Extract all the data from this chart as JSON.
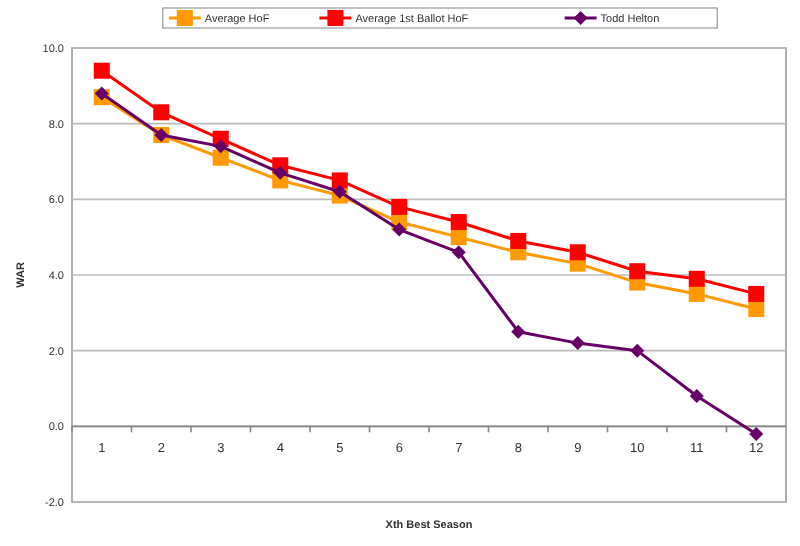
{
  "chart_data": {
    "type": "line",
    "xlabel": "Xth Best Season",
    "ylabel": "WAR",
    "categories": [
      "1",
      "2",
      "3",
      "4",
      "5",
      "6",
      "7",
      "8",
      "9",
      "10",
      "11",
      "12"
    ],
    "ylim": [
      -2,
      10
    ],
    "yticks": [
      {
        "value": -2,
        "label": "-2.0"
      },
      {
        "value": 0,
        "label": "0.0"
      },
      {
        "value": 2,
        "label": "2.0"
      },
      {
        "value": 4,
        "label": "4.0"
      },
      {
        "value": 6,
        "label": "6.0"
      },
      {
        "value": 8,
        "label": "8.0"
      },
      {
        "value": 10,
        "label": "10.0"
      }
    ],
    "grid": "y",
    "legend": "top",
    "series": [
      {
        "name": "Average HoF",
        "color": "#ff9900",
        "marker": "square",
        "values": [
          8.7,
          7.7,
          7.1,
          6.5,
          6.1,
          5.4,
          5.0,
          4.6,
          4.3,
          3.8,
          3.5,
          3.1
        ]
      },
      {
        "name": "Average 1st Ballot HoF",
        "color": "#ff0000",
        "marker": "square",
        "values": [
          9.4,
          8.3,
          7.6,
          6.9,
          6.5,
          5.8,
          5.4,
          4.9,
          4.6,
          4.1,
          3.9,
          3.5
        ]
      },
      {
        "name": "Todd Helton",
        "color": "#660066",
        "marker": "diamond",
        "values": [
          8.8,
          7.7,
          7.4,
          6.7,
          6.2,
          5.2,
          4.6,
          2.5,
          2.2,
          2.0,
          0.8,
          -0.2
        ]
      }
    ]
  }
}
